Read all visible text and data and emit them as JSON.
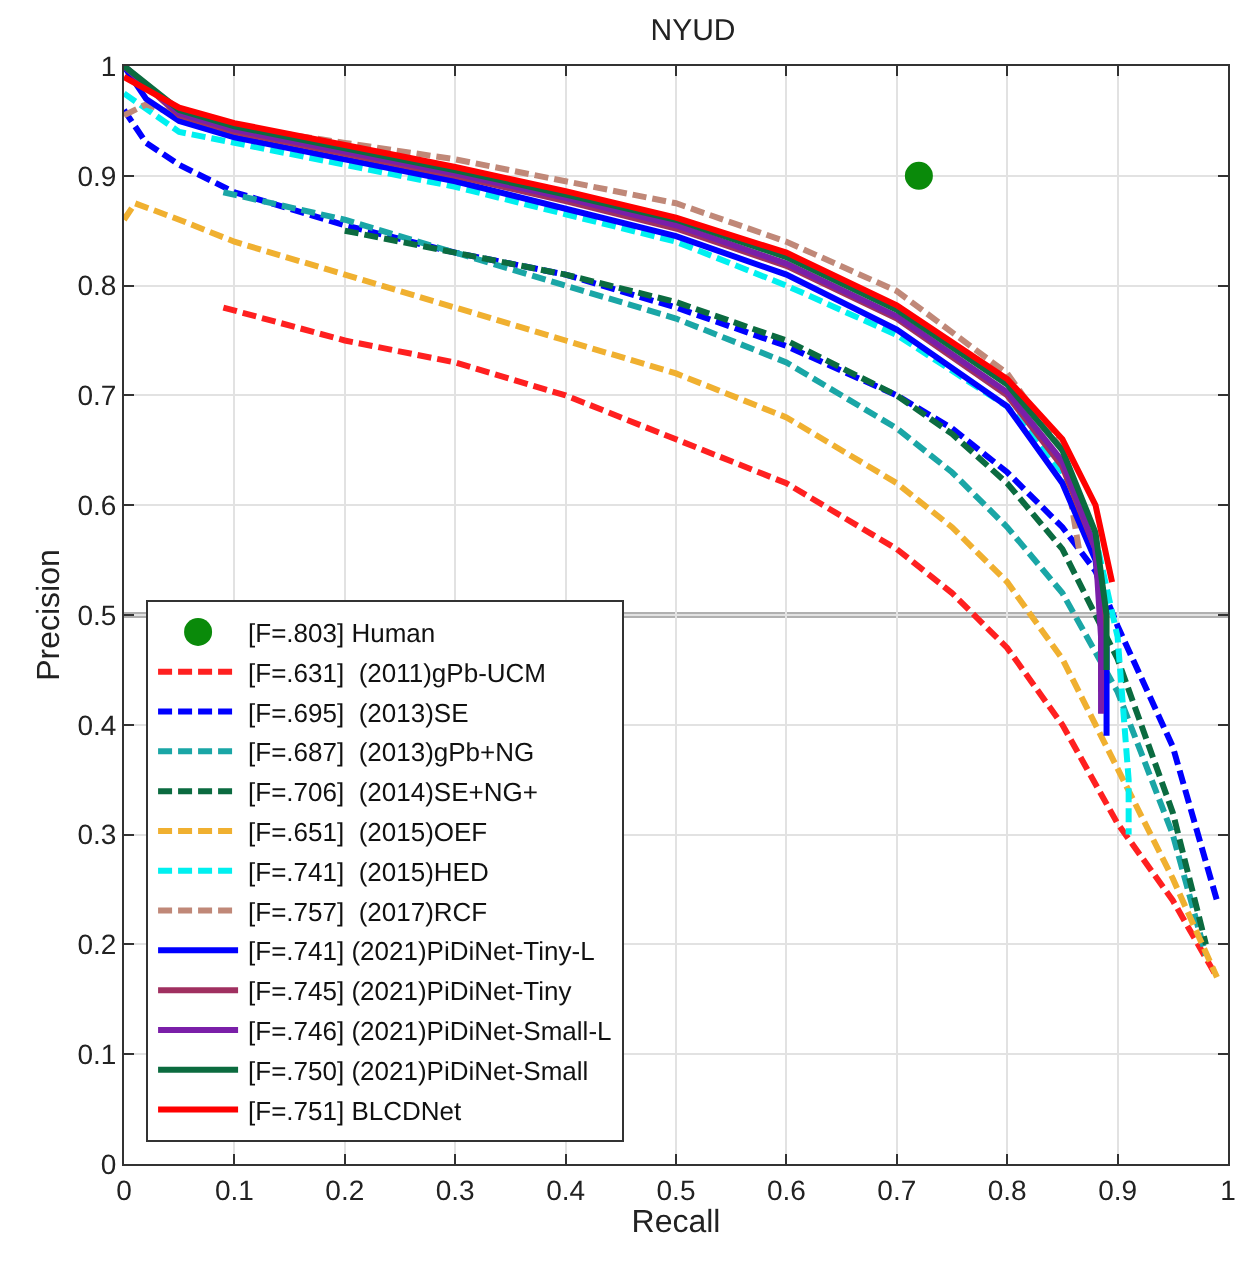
{
  "chart_data": {
    "type": "line",
    "title": "NYUD",
    "xlabel": "Recall",
    "ylabel": "Precision",
    "xlim": [
      0,
      1
    ],
    "ylim": [
      0,
      1
    ],
    "xticks": [
      0,
      0.1,
      0.2,
      0.3,
      0.4,
      0.5,
      0.6,
      0.7,
      0.8,
      0.9,
      1
    ],
    "yticks": [
      0,
      0.1,
      0.2,
      0.3,
      0.4,
      0.5,
      0.6,
      0.7,
      0.8,
      0.9,
      1
    ],
    "grid": true,
    "legend": "bottom left",
    "ref_lines": [
      {
        "axis": "y",
        "value": 0.5,
        "color": "#b0b0b0"
      }
    ],
    "series": [
      {
        "name": "[F=.803] Human",
        "type": "scatter",
        "marker": "circle",
        "color": "#0a8a0a",
        "x": [
          0.72
        ],
        "values": [
          0.9
        ]
      },
      {
        "name": "[F=.631]  (2011)gPb-UCM",
        "line_style": "dashed",
        "color": "#ff2020",
        "x": [
          0.09,
          0.2,
          0.3,
          0.4,
          0.5,
          0.6,
          0.7,
          0.75,
          0.8,
          0.85,
          0.9,
          0.95,
          0.99
        ],
        "values": [
          0.78,
          0.75,
          0.73,
          0.7,
          0.66,
          0.62,
          0.56,
          0.52,
          0.47,
          0.4,
          0.31,
          0.24,
          0.17
        ]
      },
      {
        "name": "[F=.695]  (2013)SE",
        "line_style": "dashed",
        "color": "#0000ff",
        "x": [
          0,
          0.02,
          0.05,
          0.1,
          0.2,
          0.3,
          0.4,
          0.5,
          0.6,
          0.7,
          0.75,
          0.8,
          0.85,
          0.88,
          0.9,
          0.95,
          0.99
        ],
        "values": [
          0.96,
          0.93,
          0.91,
          0.885,
          0.855,
          0.83,
          0.81,
          0.78,
          0.745,
          0.7,
          0.67,
          0.63,
          0.58,
          0.54,
          0.49,
          0.38,
          0.24
        ]
      },
      {
        "name": "[F=.687]  (2013)gPb+NG",
        "line_style": "dashed",
        "color": "#1aa6a6",
        "x": [
          0.09,
          0.2,
          0.3,
          0.4,
          0.5,
          0.6,
          0.7,
          0.75,
          0.8,
          0.85,
          0.9,
          0.95,
          0.98
        ],
        "values": [
          0.885,
          0.86,
          0.83,
          0.8,
          0.77,
          0.73,
          0.67,
          0.63,
          0.58,
          0.52,
          0.43,
          0.3,
          0.19
        ]
      },
      {
        "name": "[F=.706]  (2014)SE+NG+",
        "line_style": "dashed",
        "color": "#0b6b40",
        "x": [
          0.2,
          0.3,
          0.4,
          0.5,
          0.6,
          0.7,
          0.75,
          0.8,
          0.85,
          0.9,
          0.95,
          0.98
        ],
        "values": [
          0.85,
          0.83,
          0.81,
          0.785,
          0.75,
          0.7,
          0.665,
          0.62,
          0.56,
          0.46,
          0.32,
          0.2
        ]
      },
      {
        "name": "[F=.651]  (2015)OEF",
        "line_style": "dashed",
        "color": "#f0b030",
        "x": [
          0,
          0.01,
          0.05,
          0.1,
          0.2,
          0.3,
          0.4,
          0.5,
          0.6,
          0.7,
          0.75,
          0.8,
          0.85,
          0.9,
          0.95,
          0.99
        ],
        "values": [
          0.86,
          0.875,
          0.86,
          0.84,
          0.81,
          0.78,
          0.75,
          0.72,
          0.68,
          0.62,
          0.58,
          0.53,
          0.46,
          0.36,
          0.26,
          0.17
        ]
      },
      {
        "name": "[F=.741]  (2015)HED",
        "line_style": "dashed",
        "color": "#00f0f0",
        "x": [
          0,
          0.05,
          0.1,
          0.2,
          0.3,
          0.4,
          0.5,
          0.6,
          0.7,
          0.8,
          0.85,
          0.88,
          0.9,
          0.91,
          0.91
        ],
        "values": [
          0.975,
          0.94,
          0.93,
          0.91,
          0.89,
          0.865,
          0.84,
          0.8,
          0.755,
          0.69,
          0.63,
          0.57,
          0.48,
          0.35,
          0.3
        ]
      },
      {
        "name": "[F=.757]  (2017)RCF",
        "line_style": "dashed",
        "color": "#c08878",
        "x": [
          0,
          0.02,
          0.05,
          0.1,
          0.2,
          0.3,
          0.4,
          0.5,
          0.6,
          0.7,
          0.8,
          0.85,
          0.865
        ],
        "values": [
          0.955,
          0.965,
          0.955,
          0.945,
          0.93,
          0.915,
          0.895,
          0.875,
          0.84,
          0.795,
          0.72,
          0.65,
          0.56
        ]
      },
      {
        "name": "[F=.741] (2021)PiDiNet-Tiny-L",
        "line_style": "solid",
        "color": "#0000ff",
        "x": [
          0,
          0.02,
          0.05,
          0.1,
          0.2,
          0.3,
          0.4,
          0.5,
          0.6,
          0.7,
          0.8,
          0.85,
          0.88,
          0.89,
          0.89
        ],
        "values": [
          1.0,
          0.97,
          0.95,
          0.935,
          0.915,
          0.895,
          0.87,
          0.845,
          0.81,
          0.76,
          0.69,
          0.62,
          0.55,
          0.47,
          0.39
        ]
      },
      {
        "name": "[F=.745] (2021)PiDiNet-Tiny",
        "line_style": "solid",
        "color": "#a03060",
        "x": [
          0,
          0.05,
          0.1,
          0.2,
          0.3,
          0.4,
          0.5,
          0.6,
          0.7,
          0.8,
          0.85,
          0.88,
          0.885,
          0.885
        ],
        "values": [
          1.0,
          0.955,
          0.94,
          0.92,
          0.9,
          0.877,
          0.852,
          0.818,
          0.77,
          0.7,
          0.635,
          0.56,
          0.5,
          0.43
        ]
      },
      {
        "name": "[F=.746] (2021)PiDiNet-Small-L",
        "line_style": "solid",
        "color": "#7a1fa8",
        "x": [
          0,
          0.05,
          0.1,
          0.2,
          0.3,
          0.4,
          0.5,
          0.6,
          0.7,
          0.8,
          0.85,
          0.88,
          0.885,
          0.885
        ],
        "values": [
          1.0,
          0.957,
          0.942,
          0.922,
          0.902,
          0.88,
          0.855,
          0.82,
          0.772,
          0.703,
          0.64,
          0.56,
          0.48,
          0.41
        ]
      },
      {
        "name": "[F=.750] (2021)PiDiNet-Small",
        "line_style": "solid",
        "color": "#0b6b3f",
        "x": [
          0,
          0.05,
          0.1,
          0.2,
          0.3,
          0.4,
          0.5,
          0.6,
          0.7,
          0.8,
          0.85,
          0.88,
          0.89,
          0.89
        ],
        "values": [
          1.0,
          0.96,
          0.945,
          0.925,
          0.905,
          0.883,
          0.86,
          0.826,
          0.778,
          0.71,
          0.65,
          0.575,
          0.5,
          0.45
        ]
      },
      {
        "name": "[F=.751] BLCDNet",
        "line_style": "solid",
        "color": "#ff0000",
        "x": [
          0,
          0.05,
          0.1,
          0.2,
          0.3,
          0.4,
          0.5,
          0.6,
          0.7,
          0.8,
          0.85,
          0.88,
          0.895
        ],
        "values": [
          0.99,
          0.962,
          0.948,
          0.928,
          0.908,
          0.886,
          0.862,
          0.83,
          0.782,
          0.715,
          0.66,
          0.6,
          0.53
        ]
      }
    ]
  }
}
